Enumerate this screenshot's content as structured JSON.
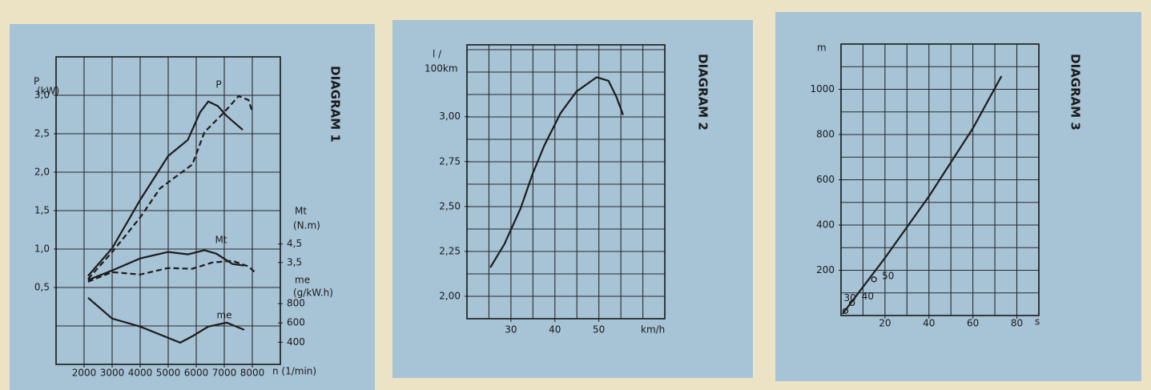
{
  "chart_data": [
    {
      "type": "line",
      "title": "DIAGRAM 1",
      "x_label": "n (1/min)",
      "y_label": [
        "P",
        "(kW)"
      ],
      "y2_label": [
        "Mt",
        "(N.m)"
      ],
      "y3_label": [
        "me",
        "(g/kW.h)"
      ],
      "xlim": [
        1000,
        9000
      ],
      "xticks": [
        2000,
        3000,
        4000,
        5000,
        6000,
        7000,
        8000
      ],
      "ylim": [
        -0.5,
        3.5
      ],
      "yticks": [
        {
          "value": 0.5,
          "label": "0,5"
        },
        {
          "value": 1.0,
          "label": "1,0"
        },
        {
          "value": 1.5,
          "label": "1,5"
        },
        {
          "value": 2.0,
          "label": "2,0"
        },
        {
          "value": 2.5,
          "label": "2,5"
        },
        {
          "value": 3.0,
          "label": "3,0"
        }
      ],
      "y2lim": [
        -2,
        14.6
      ],
      "y2ticks": [
        {
          "value": 3.5,
          "label": "3,5"
        },
        {
          "value": 4.5,
          "label": "4,5"
        }
      ],
      "y3lim": [
        170,
        3360
      ],
      "y3ticks": [
        400,
        600,
        800
      ],
      "grid": true,
      "series": [
        {
          "name": "P",
          "color": "#1c1c1c",
          "line_style": "solid",
          "axis": "y",
          "x": [
            2140,
            3000,
            4000,
            5000,
            5700,
            6140,
            6430,
            6770,
            7090,
            7660
          ],
          "values": [
            0.65,
            1.01,
            1.64,
            2.21,
            2.42,
            2.78,
            2.92,
            2.86,
            2.73,
            2.55
          ]
        },
        {
          "color": "#1c1c1c",
          "line_style": "dashed",
          "axis": "y",
          "x": [
            2140,
            3000,
            4000,
            4710,
            5860,
            6290,
            7000,
            7510,
            7860,
            8000
          ],
          "values": [
            0.61,
            0.96,
            1.41,
            1.79,
            2.1,
            2.52,
            2.78,
            2.99,
            2.94,
            2.79
          ]
        },
        {
          "name": "Mt",
          "color": "#1c1c1c",
          "line_style": "solid",
          "axis": "y2",
          "x": [
            2140,
            3000,
            4000,
            5000,
            5710,
            6290,
            6710,
            7290,
            7710
          ],
          "values": [
            2.55,
            3.07,
            3.72,
            4.07,
            3.94,
            4.16,
            3.98,
            3.42,
            3.33
          ]
        },
        {
          "color": "#1c1c1c",
          "line_style": "dashed",
          "axis": "y2",
          "x": [
            2140,
            3000,
            4000,
            5000,
            5860,
            6570,
            7290,
            7860,
            8090
          ],
          "values": [
            2.46,
            2.98,
            2.85,
            3.2,
            3.16,
            3.5,
            3.59,
            3.29,
            2.98
          ]
        },
        {
          "name": "me",
          "color": "#1c1c1c",
          "line_style": "solid",
          "axis": "y3",
          "x": [
            2140,
            3000,
            4000,
            5000,
            5430,
            5860,
            6430,
            7090,
            7710
          ],
          "values": [
            861,
            645,
            562,
            445,
            395,
            462,
            562,
            603,
            528
          ]
        }
      ]
    },
    {
      "type": "line",
      "title": "DIAGRAM 2",
      "x_label": "km/h",
      "y_label": [
        "l /",
        "100km"
      ],
      "xlim": [
        20,
        65
      ],
      "xticks": [
        30,
        40,
        50
      ],
      "ylim": [
        1.875,
        3.4
      ],
      "yticks": [
        {
          "value": 2.0,
          "label": "2,00"
        },
        {
          "value": 2.25,
          "label": "2,25"
        },
        {
          "value": 2.5,
          "label": "2,50"
        },
        {
          "value": 2.75,
          "label": "2,75"
        },
        {
          "value": 3.0,
          "label": "3,00"
        }
      ],
      "grid": true,
      "series": [
        {
          "color": "#1c1c1c",
          "line_style": "solid",
          "axis": "y",
          "x": [
            25.3,
            28.5,
            32.2,
            34.9,
            37.6,
            41.3,
            44.9,
            49.5,
            52.2,
            54,
            55.5
          ],
          "values": [
            2.16,
            2.29,
            2.49,
            2.68,
            2.84,
            3.02,
            3.14,
            3.22,
            3.2,
            3.11,
            3.01
          ]
        }
      ]
    },
    {
      "type": "line",
      "title": "DIAGRAM 3",
      "x_label": "s",
      "y_label": [
        "m"
      ],
      "xlim": [
        0,
        90
      ],
      "xticks": [
        20,
        40,
        60,
        80
      ],
      "ylim": [
        0,
        1200
      ],
      "yticks": [
        200,
        400,
        600,
        800,
        1000
      ],
      "grid": true,
      "series": [
        {
          "color": "#1c1c1c",
          "line_style": "solid",
          "axis": "y",
          "x": [
            0.7,
            20,
            40,
            60,
            73
          ],
          "values": [
            7,
            255,
            527,
            828,
            1058
          ]
        }
      ],
      "markers": {
        "x": [
          2,
          5,
          15
        ],
        "values": [
          20,
          55,
          160
        ],
        "labels": [
          "30",
          "40",
          "50"
        ]
      }
    }
  ]
}
